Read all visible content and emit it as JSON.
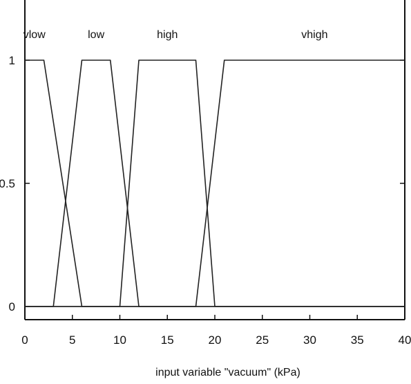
{
  "chart_data": {
    "type": "line",
    "title": "",
    "xlabel": "input variable \"vacuum\" (kPa)",
    "ylabel": "",
    "xlim": [
      0,
      40
    ],
    "ylim": [
      0,
      1
    ],
    "x_ticks": [
      "0",
      "5",
      "10",
      "15",
      "20",
      "25",
      "30",
      "35",
      "40"
    ],
    "y_ticks": [
      "0",
      "0.5",
      "1"
    ],
    "grid": false,
    "series": [
      {
        "name": "vlow",
        "points": [
          [
            0,
            1
          ],
          [
            2,
            1
          ],
          [
            6,
            0
          ],
          [
            40,
            0
          ]
        ]
      },
      {
        "name": "low",
        "points": [
          [
            0,
            0
          ],
          [
            3,
            0
          ],
          [
            6,
            1
          ],
          [
            9,
            1
          ],
          [
            12,
            0
          ],
          [
            40,
            0
          ]
        ]
      },
      {
        "name": "high",
        "points": [
          [
            0,
            0
          ],
          [
            10,
            0
          ],
          [
            12,
            1
          ],
          [
            18,
            1
          ],
          [
            20,
            0
          ],
          [
            40,
            0
          ]
        ]
      },
      {
        "name": "vhigh",
        "points": [
          [
            0,
            0
          ],
          [
            18,
            0
          ],
          [
            21,
            1
          ],
          [
            40,
            1
          ]
        ]
      }
    ],
    "colors": {
      "line": "#222222",
      "axis": "#111111",
      "background": "#ffffff"
    }
  }
}
